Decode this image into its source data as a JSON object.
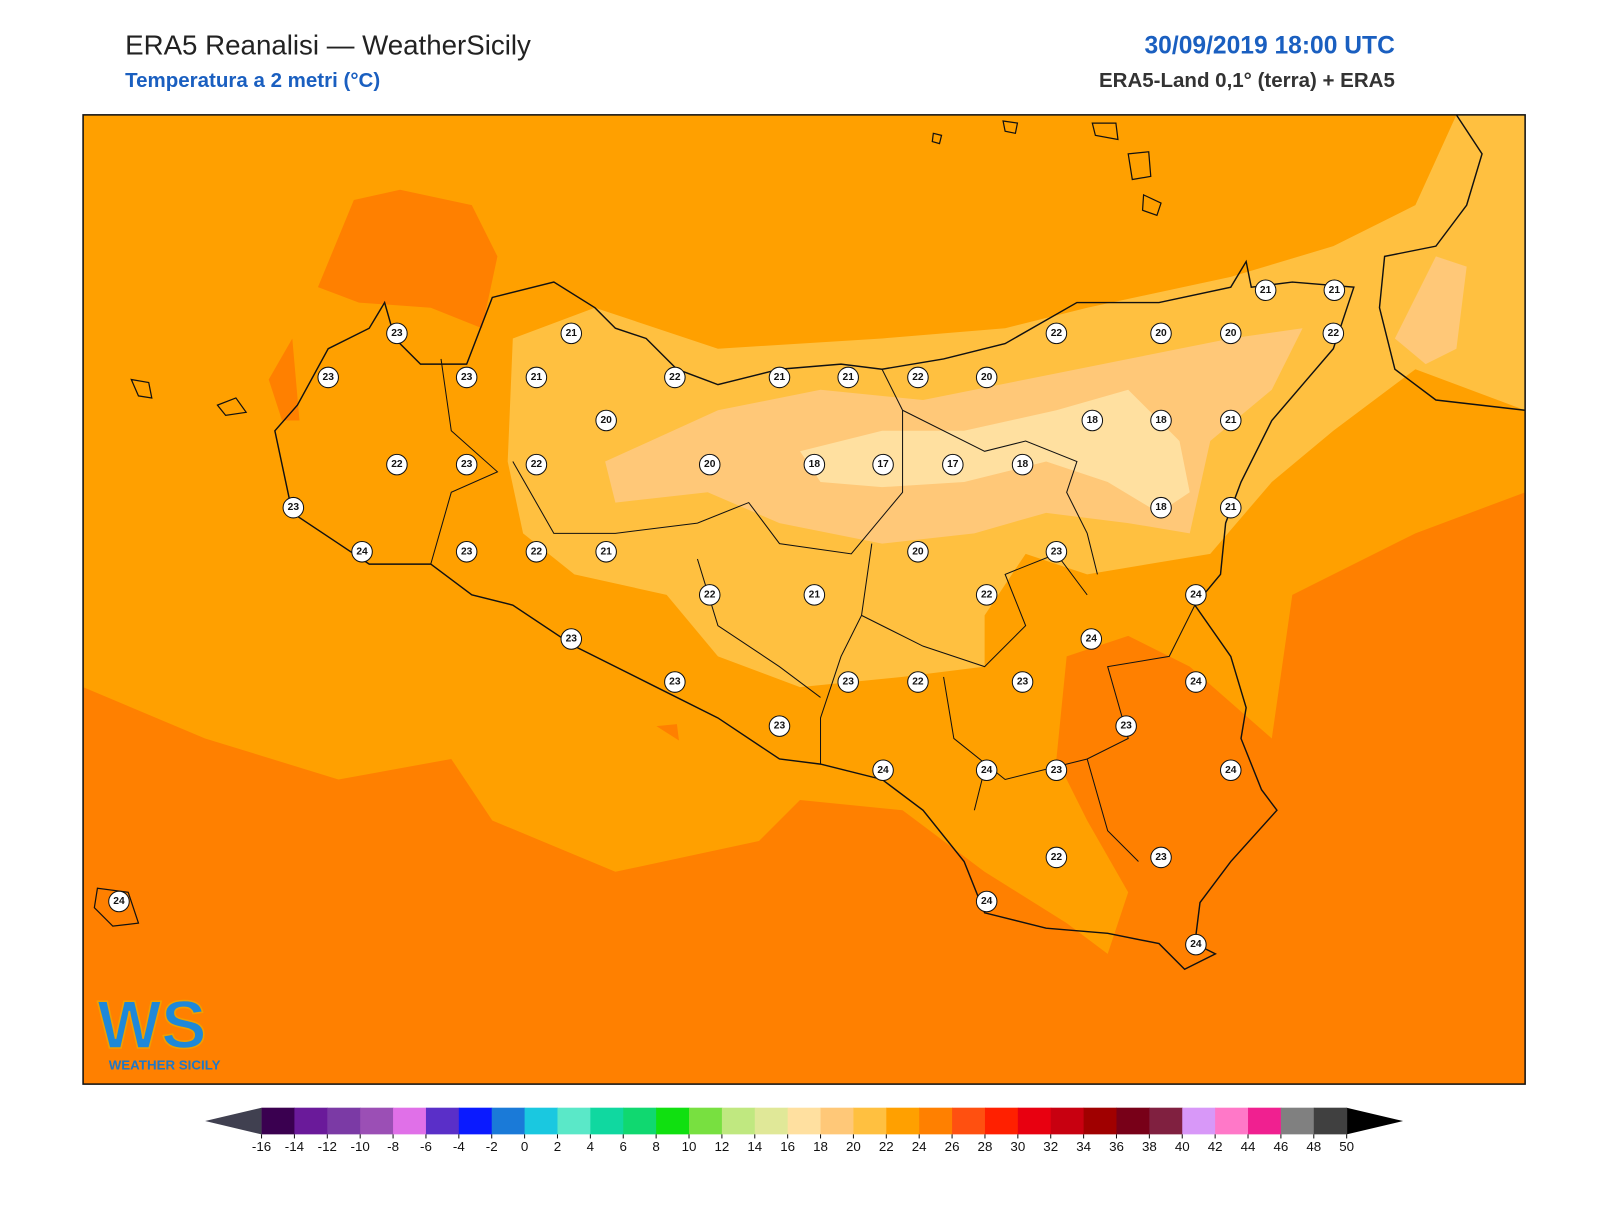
{
  "header": {
    "title": "ERA5 Reanalisi — WeatherSicily",
    "subtitle": "Temperatura a 2 metri (°C)",
    "datetime": "30/09/2019 18:00 UTC",
    "source": "ERA5-Land 0,1° (terra) + ERA5"
  },
  "map": {
    "sea_color": "#ffa000",
    "warm_color": "#ff8000",
    "mild_color": "#ffc040",
    "cool_color": "#ffc878",
    "cold_color": "#ffe0a0"
  },
  "stations": [
    23,
    21,
    23,
    23,
    21,
    22,
    21,
    21,
    22,
    20,
    22,
    20,
    20,
    22,
    21,
    21,
    20,
    18,
    18,
    21,
    22,
    23,
    22,
    20,
    18,
    17,
    17,
    18,
    23,
    18,
    21,
    24,
    23,
    22,
    21,
    20,
    23,
    22,
    21,
    22,
    24,
    23,
    24,
    23,
    23,
    22,
    23,
    24,
    23,
    23,
    24,
    24,
    23,
    24,
    22,
    23,
    24,
    24,
    24
  ],
  "colorbar": {
    "ticks": [
      -16,
      -14,
      -12,
      -10,
      -8,
      -6,
      -4,
      -2,
      0,
      2,
      4,
      6,
      8,
      10,
      12,
      14,
      16,
      18,
      20,
      22,
      24,
      26,
      28,
      30,
      32,
      34,
      36,
      38,
      40,
      42,
      44,
      46,
      48,
      50
    ],
    "under": "#404050",
    "over": "#000000",
    "colors": [
      "#3a0050",
      "#6a1a9a",
      "#7b3aa5",
      "#9b4fb5",
      "#e070e8",
      "#5a2fc8",
      "#0a1aff",
      "#1a7ad8",
      "#1ac8e0",
      "#5ae8c8",
      "#10d8a0",
      "#10d870",
      "#10e010",
      "#78e040",
      "#c0e880",
      "#e0e898",
      "#ffe0a0",
      "#ffc878",
      "#ffc040",
      "#ffa000",
      "#ff8000",
      "#ff5010",
      "#ff2000",
      "#e80010",
      "#c80010",
      "#a00000",
      "#780018",
      "#802040",
      "#d898f8",
      "#ff78c8",
      "#f02090",
      "#808080",
      "#404040"
    ]
  },
  "logo": {
    "mark": "WS",
    "text": "WEATHER SICILY"
  }
}
